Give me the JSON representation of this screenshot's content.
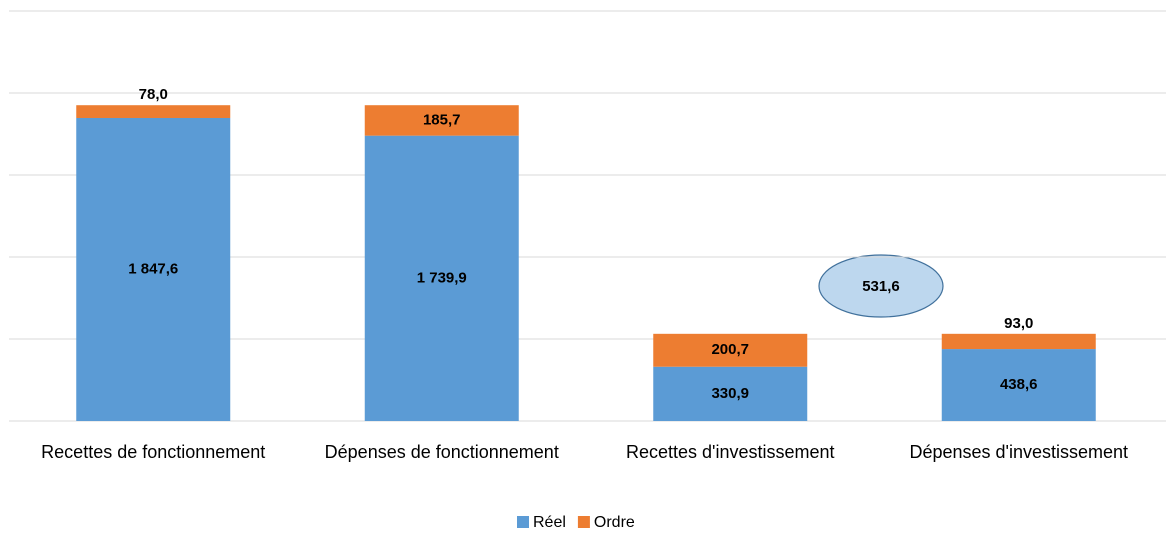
{
  "chart_data": {
    "type": "stacked_bar",
    "categories": [
      "Recettes de fonctionnement",
      "Dépenses de fonctionnement",
      "Recettes d'investissement",
      "Dépenses d'investissement"
    ],
    "series": [
      {
        "name": "Réel",
        "color": "#5b9bd5",
        "values": [
          1847.6,
          1739.9,
          330.9,
          438.6
        ],
        "value_labels": [
          "1 847,6",
          "1 739,9",
          "330,9",
          "438,6"
        ]
      },
      {
        "name": "Ordre",
        "color": "#ed7d31",
        "values": [
          78.0,
          185.7,
          200.7,
          93.0
        ],
        "value_labels": [
          "78,0",
          "185,7",
          "200,7",
          "93,0"
        ]
      }
    ],
    "ylim": [
      0,
      2500
    ],
    "yticks": [
      0,
      500,
      1000,
      1500,
      2000,
      2500
    ],
    "grid": true,
    "annotation": "531,6",
    "legend": "bottom"
  }
}
